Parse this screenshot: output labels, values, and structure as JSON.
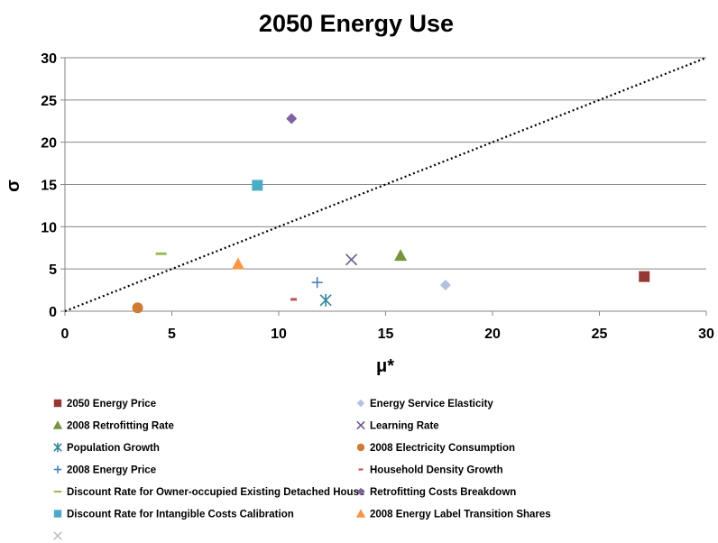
{
  "chart_data": {
    "type": "scatter",
    "title": "2050 Energy Use",
    "xlabel": "μ*",
    "ylabel": "σ",
    "xlim": [
      0,
      30
    ],
    "ylim": [
      0,
      30
    ],
    "xticks": [
      "0",
      "5",
      "10",
      "15",
      "20",
      "25",
      "30"
    ],
    "yticks": [
      "0",
      "5",
      "10",
      "15",
      "20",
      "25",
      "30"
    ],
    "grid": "horizontal",
    "legend_position": "bottom",
    "reference_line": {
      "style": "dotted",
      "x": [
        0,
        30
      ],
      "y": [
        0,
        30
      ]
    },
    "series": [
      {
        "name": "2050 Energy Price",
        "marker": "square",
        "color": "#953735",
        "x": 27.1,
        "y": 4.1
      },
      {
        "name": "Energy Service Elasticity",
        "marker": "diamond",
        "color": "#B3C2DE",
        "x": 17.8,
        "y": 3.1
      },
      {
        "name": "2008 Retrofitting Rate",
        "marker": "triangle",
        "color": "#77933C",
        "x": 15.7,
        "y": 6.6
      },
      {
        "name": "Learning Rate",
        "marker": "x",
        "color": "#6E5A8C",
        "x": 13.4,
        "y": 6.1
      },
      {
        "name": "Population Growth",
        "marker": "star",
        "color": "#31859C",
        "x": 12.2,
        "y": 1.3
      },
      {
        "name": "2008 Electricity Consumption",
        "marker": "circle",
        "color": "#D07A36",
        "x": 3.4,
        "y": 0.4
      },
      {
        "name": "2008 Energy Price",
        "marker": "plus",
        "color": "#4A7EBB",
        "x": 11.8,
        "y": 3.4
      },
      {
        "name": "Household Density Growth",
        "marker": "dash",
        "color": "#C0504D",
        "x": 10.7,
        "y": 1.4
      },
      {
        "name": "Discount Rate for Owner-occupied Existing Detached House",
        "marker": "bar",
        "color": "#9BBB59",
        "x": 4.5,
        "y": 6.8
      },
      {
        "name": "Retrofitting Costs Breakdown",
        "marker": "diamond",
        "color": "#7F62A0",
        "x": 10.6,
        "y": 22.8
      },
      {
        "name": "Discount Rate for Intangible Costs Calibration",
        "marker": "square",
        "color": "#4BACC6",
        "x": 9.0,
        "y": 14.9
      },
      {
        "name": "2008 Energy Label Transition Shares",
        "marker": "triangle",
        "color": "#F79646",
        "x": 8.1,
        "y": 5.6
      },
      {
        "name": "",
        "marker": "x",
        "color": "#BFBFBF",
        "x": null,
        "y": null
      }
    ]
  }
}
